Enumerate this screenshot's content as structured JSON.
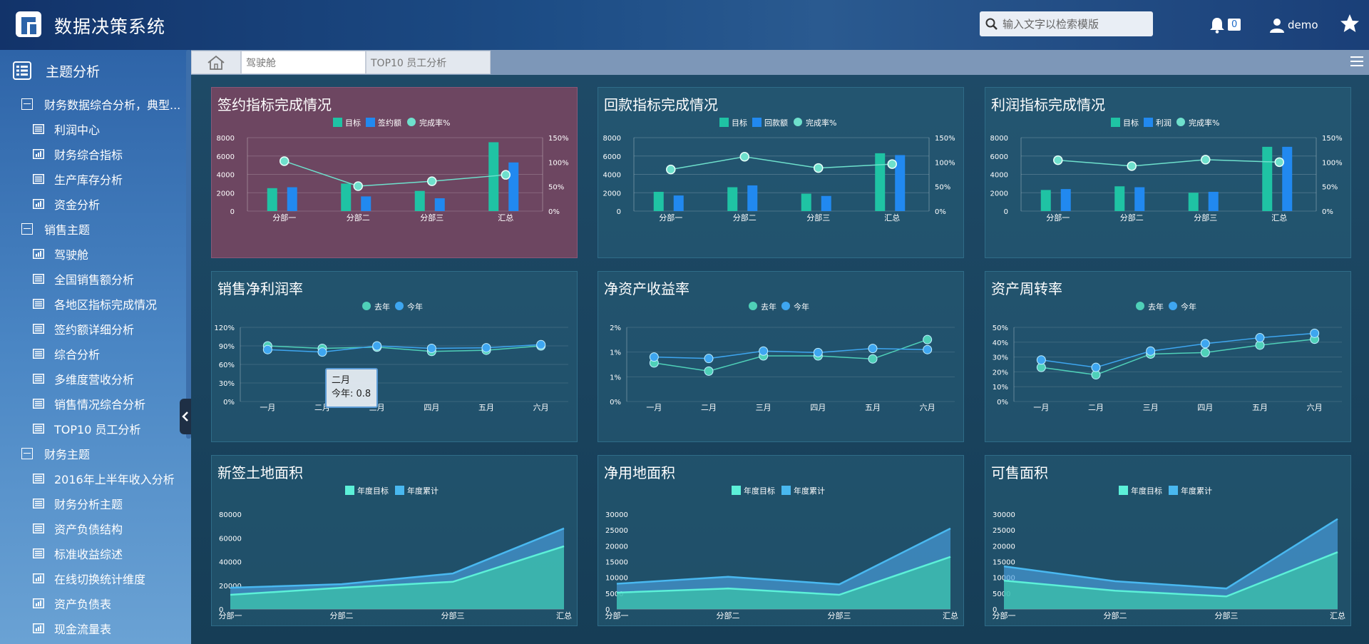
{
  "app": {
    "title": "数据决策系统",
    "username": "demo",
    "notification_count": "0"
  },
  "search": {
    "placeholder": "输入文字以检索模版"
  },
  "sidebar": {
    "heading": "主题分析",
    "groups": [
      {
        "label": "财务数据综合分析，典型...",
        "items": [
          {
            "label": "利润中心",
            "icon": "table-icon"
          },
          {
            "label": "财务综合指标",
            "icon": "bar-chart-icon"
          },
          {
            "label": "生产库存分析",
            "icon": "table-icon"
          },
          {
            "label": "资金分析",
            "icon": "bar-chart-icon"
          }
        ]
      },
      {
        "label": "销售主题",
        "items": [
          {
            "label": "驾驶舱",
            "icon": "bar-chart-icon"
          },
          {
            "label": "全国销售额分析",
            "icon": "table-icon"
          },
          {
            "label": "各地区指标完成情况",
            "icon": "table-icon"
          },
          {
            "label": "签约额详细分析",
            "icon": "table-icon"
          },
          {
            "label": "综合分析",
            "icon": "table-icon"
          },
          {
            "label": "多维度营收分析",
            "icon": "table-icon"
          },
          {
            "label": "销售情况综合分析",
            "icon": "table-icon"
          },
          {
            "label": "TOP10 员工分析",
            "icon": "table-icon"
          }
        ]
      },
      {
        "label": "财务主题",
        "items": [
          {
            "label": "2016年上半年收入分析",
            "icon": "table-icon"
          },
          {
            "label": "财务分析主题",
            "icon": "table-icon"
          },
          {
            "label": "资产负债结构",
            "icon": "table-icon"
          },
          {
            "label": "标准收益综述",
            "icon": "table-icon"
          },
          {
            "label": "在线切换统计维度",
            "icon": "bar-chart-icon"
          },
          {
            "label": "资产负债表",
            "icon": "bar-chart-icon"
          },
          {
            "label": "现金流量表",
            "icon": "bar-chart-icon"
          }
        ]
      }
    ]
  },
  "tabs": [
    {
      "label": "驾驶舱",
      "active": true
    },
    {
      "label": "TOP10 员工分析",
      "active": false
    }
  ],
  "tooltip": {
    "title": "二月",
    "label": "今年:",
    "value": "0.8"
  },
  "colors": {
    "target": "#1fc3a4",
    "actual": "#2189f0",
    "rate": "#6ee0cc",
    "last_year": "#4fd0b8",
    "this_year": "#3ea6f0",
    "area_target": "#5cf0d8",
    "area_total": "#49b8f0"
  },
  "chart_data": [
    {
      "id": "c1",
      "type": "bar",
      "title": "签约指标完成情况",
      "categories": [
        "分部一",
        "分部二",
        "分部三",
        "汇总"
      ],
      "series": [
        {
          "name": "目标",
          "values": [
            2500,
            3000,
            2200,
            7500
          ]
        },
        {
          "name": "签约额",
          "values": [
            2600,
            1600,
            1400,
            5300
          ]
        },
        {
          "name": "完成率%",
          "values": [
            102,
            51,
            61,
            74
          ],
          "axis": "right"
        }
      ],
      "yticks": [
        "8000",
        "6000",
        "4000",
        "2000",
        "0"
      ],
      "ylim": [
        0,
        8000
      ],
      "y2ticks": [
        "150%",
        "100%",
        "50%",
        "0%"
      ],
      "y2lim": [
        0,
        150
      ]
    },
    {
      "id": "c2",
      "type": "bar",
      "title": "回款指标完成情况",
      "categories": [
        "分部一",
        "分部二",
        "分部三",
        "汇总"
      ],
      "series": [
        {
          "name": "目标",
          "values": [
            2100,
            2600,
            1900,
            6300
          ]
        },
        {
          "name": "回款额",
          "values": [
            1700,
            2800,
            1650,
            6100
          ]
        },
        {
          "name": "完成率%",
          "values": [
            85,
            111,
            88,
            96
          ],
          "axis": "right"
        }
      ],
      "yticks": [
        "8000",
        "6000",
        "4000",
        "2000",
        "0"
      ],
      "ylim": [
        0,
        8000
      ],
      "y2ticks": [
        "150%",
        "100%",
        "50%",
        "0%"
      ],
      "y2lim": [
        0,
        150
      ]
    },
    {
      "id": "c3",
      "type": "bar",
      "title": "利润指标完成情况",
      "categories": [
        "分部一",
        "分部二",
        "分部三",
        "汇总"
      ],
      "series": [
        {
          "name": "目标",
          "values": [
            2300,
            2700,
            2000,
            7000
          ]
        },
        {
          "name": "利润",
          "values": [
            2400,
            2600,
            2100,
            7000
          ]
        },
        {
          "name": "完成率%",
          "values": [
            104,
            92,
            105,
            100
          ],
          "axis": "right"
        }
      ],
      "yticks": [
        "8000",
        "6000",
        "4000",
        "2000",
        "0"
      ],
      "ylim": [
        0,
        8000
      ],
      "y2ticks": [
        "150%",
        "100%",
        "50%",
        "0%"
      ],
      "y2lim": [
        0,
        150
      ]
    },
    {
      "id": "c4",
      "type": "line",
      "title": "销售净利润率",
      "categories": [
        "一月",
        "二月",
        "三月",
        "四月",
        "五月",
        "六月"
      ],
      "series": [
        {
          "name": "去年",
          "values": [
            0.9,
            0.86,
            0.88,
            0.81,
            0.83,
            0.9
          ]
        },
        {
          "name": "今年",
          "values": [
            0.84,
            0.8,
            0.9,
            0.86,
            0.87,
            0.92
          ]
        }
      ],
      "yticks": [
        "120%",
        "90%",
        "60%",
        "30%",
        "0%"
      ],
      "ylim": [
        0,
        1.2
      ]
    },
    {
      "id": "c5",
      "type": "line",
      "title": "净资产收益率",
      "categories": [
        "一月",
        "二月",
        "三月",
        "四月",
        "五月",
        "六月"
      ],
      "series": [
        {
          "name": "去年",
          "values": [
            1.04,
            0.82,
            1.23,
            1.23,
            1.15,
            1.67
          ]
        },
        {
          "name": "今年",
          "values": [
            1.2,
            1.16,
            1.36,
            1.32,
            1.43,
            1.4
          ]
        }
      ],
      "yticks": [
        "2%",
        "1%",
        "1%",
        "0%"
      ],
      "ylim": [
        0,
        2
      ]
    },
    {
      "id": "c6",
      "type": "line",
      "title": "资产周转率",
      "categories": [
        "一月",
        "二月",
        "三月",
        "四月",
        "五月",
        "六月"
      ],
      "series": [
        {
          "name": "去年",
          "values": [
            0.23,
            0.18,
            0.32,
            0.33,
            0.38,
            0.42
          ]
        },
        {
          "name": "今年",
          "values": [
            0.28,
            0.23,
            0.34,
            0.39,
            0.43,
            0.46
          ]
        }
      ],
      "yticks": [
        "50%",
        "40%",
        "30%",
        "20%",
        "10%",
        "0%"
      ],
      "ylim": [
        0,
        0.5
      ]
    },
    {
      "id": "c7",
      "type": "area",
      "title": "新签土地面积",
      "categories": [
        "分部一",
        "分部二",
        "分部三",
        "汇总"
      ],
      "series": [
        {
          "name": "年度目标",
          "values": [
            12000,
            18000,
            23000,
            53000
          ]
        },
        {
          "name": "年度累计",
          "values": [
            18000,
            21000,
            30000,
            68000
          ]
        }
      ],
      "yticks": [
        "80000",
        "60000",
        "40000",
        "20000",
        "0"
      ],
      "ylim": [
        0,
        80000
      ]
    },
    {
      "id": "c8",
      "type": "area",
      "title": "净用地面积",
      "categories": [
        "分部一",
        "分部二",
        "分部三",
        "汇总"
      ],
      "series": [
        {
          "name": "年度目标",
          "values": [
            5200,
            6500,
            4500,
            16500
          ]
        },
        {
          "name": "年度累计",
          "values": [
            8000,
            10200,
            7800,
            25500
          ]
        }
      ],
      "yticks": [
        "30000",
        "25000",
        "20000",
        "15000",
        "10000",
        "5000",
        "0"
      ],
      "ylim": [
        0,
        30000
      ]
    },
    {
      "id": "c9",
      "type": "area",
      "title": "可售面积",
      "categories": [
        "分部一",
        "分部二",
        "分部三",
        "汇总"
      ],
      "series": [
        {
          "name": "年度目标",
          "values": [
            9000,
            5800,
            4000,
            18000
          ]
        },
        {
          "name": "年度累计",
          "values": [
            13500,
            8800,
            6500,
            28500
          ]
        }
      ],
      "yticks": [
        "30000",
        "25000",
        "20000",
        "15000",
        "10000",
        "5000",
        "0"
      ],
      "ylim": [
        0,
        30000
      ]
    }
  ]
}
